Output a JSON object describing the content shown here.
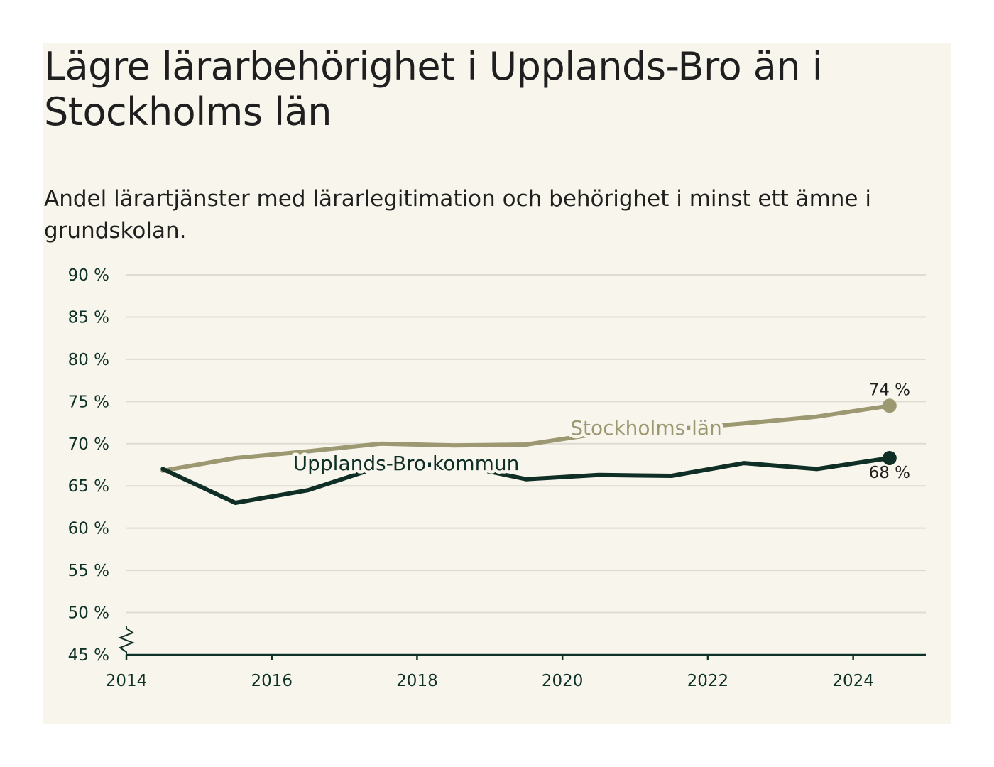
{
  "title": "Lägre lärarbehörighet i Upplands-Bro än i Stockholms län",
  "subtitle": "Andel lärartjänster med lärarlegitimation och behörighet i minst ett ämne i grundskolan.",
  "colors": {
    "background": "#f8f6ec",
    "stockholm": "#9c9872",
    "upplands_bro": "#0e2e26",
    "grid": "#dddbd2",
    "axis": "#0e3228"
  },
  "chart_data": {
    "type": "line",
    "title": "Lägre lärarbehörighet i Upplands-Bro än i Stockholms län",
    "subtitle": "Andel lärartjänster med lärarlegitimation och behörighet i minst ett ämne i grundskolan.",
    "xlabel": "",
    "ylabel": "",
    "xlim": [
      2014,
      2025
    ],
    "ylim": [
      45,
      90
    ],
    "y_axis_break": true,
    "grid": true,
    "x": [
      2014.5,
      2015.5,
      2016.5,
      2017.5,
      2018.5,
      2019.5,
      2020.5,
      2021.5,
      2022.5,
      2023.5,
      2024.5
    ],
    "x_ticks": [
      2014,
      2016,
      2018,
      2020,
      2022,
      2024
    ],
    "x_tick_labels": [
      "2014",
      "2016",
      "2018",
      "2020",
      "2022",
      "2024"
    ],
    "y_ticks": [
      45,
      50,
      55,
      60,
      65,
      70,
      75,
      80,
      85,
      90
    ],
    "y_tick_labels": [
      "45 %",
      "50 %",
      "55 %",
      "60 %",
      "65 %",
      "70 %",
      "75 %",
      "80 %",
      "85 %",
      "90 %"
    ],
    "series": [
      {
        "name": "Stockholms län",
        "values": [
          66.8,
          68.3,
          69.1,
          70.0,
          69.8,
          69.9,
          71.2,
          71.7,
          72.4,
          73.2,
          74.5
        ],
        "end_label": "74 %"
      },
      {
        "name": "Upplands-Bro kommun",
        "values": [
          67.0,
          63.0,
          64.5,
          67.3,
          67.6,
          65.8,
          66.3,
          66.2,
          67.7,
          67.0,
          68.3
        ],
        "end_label": "68 %"
      }
    ]
  }
}
